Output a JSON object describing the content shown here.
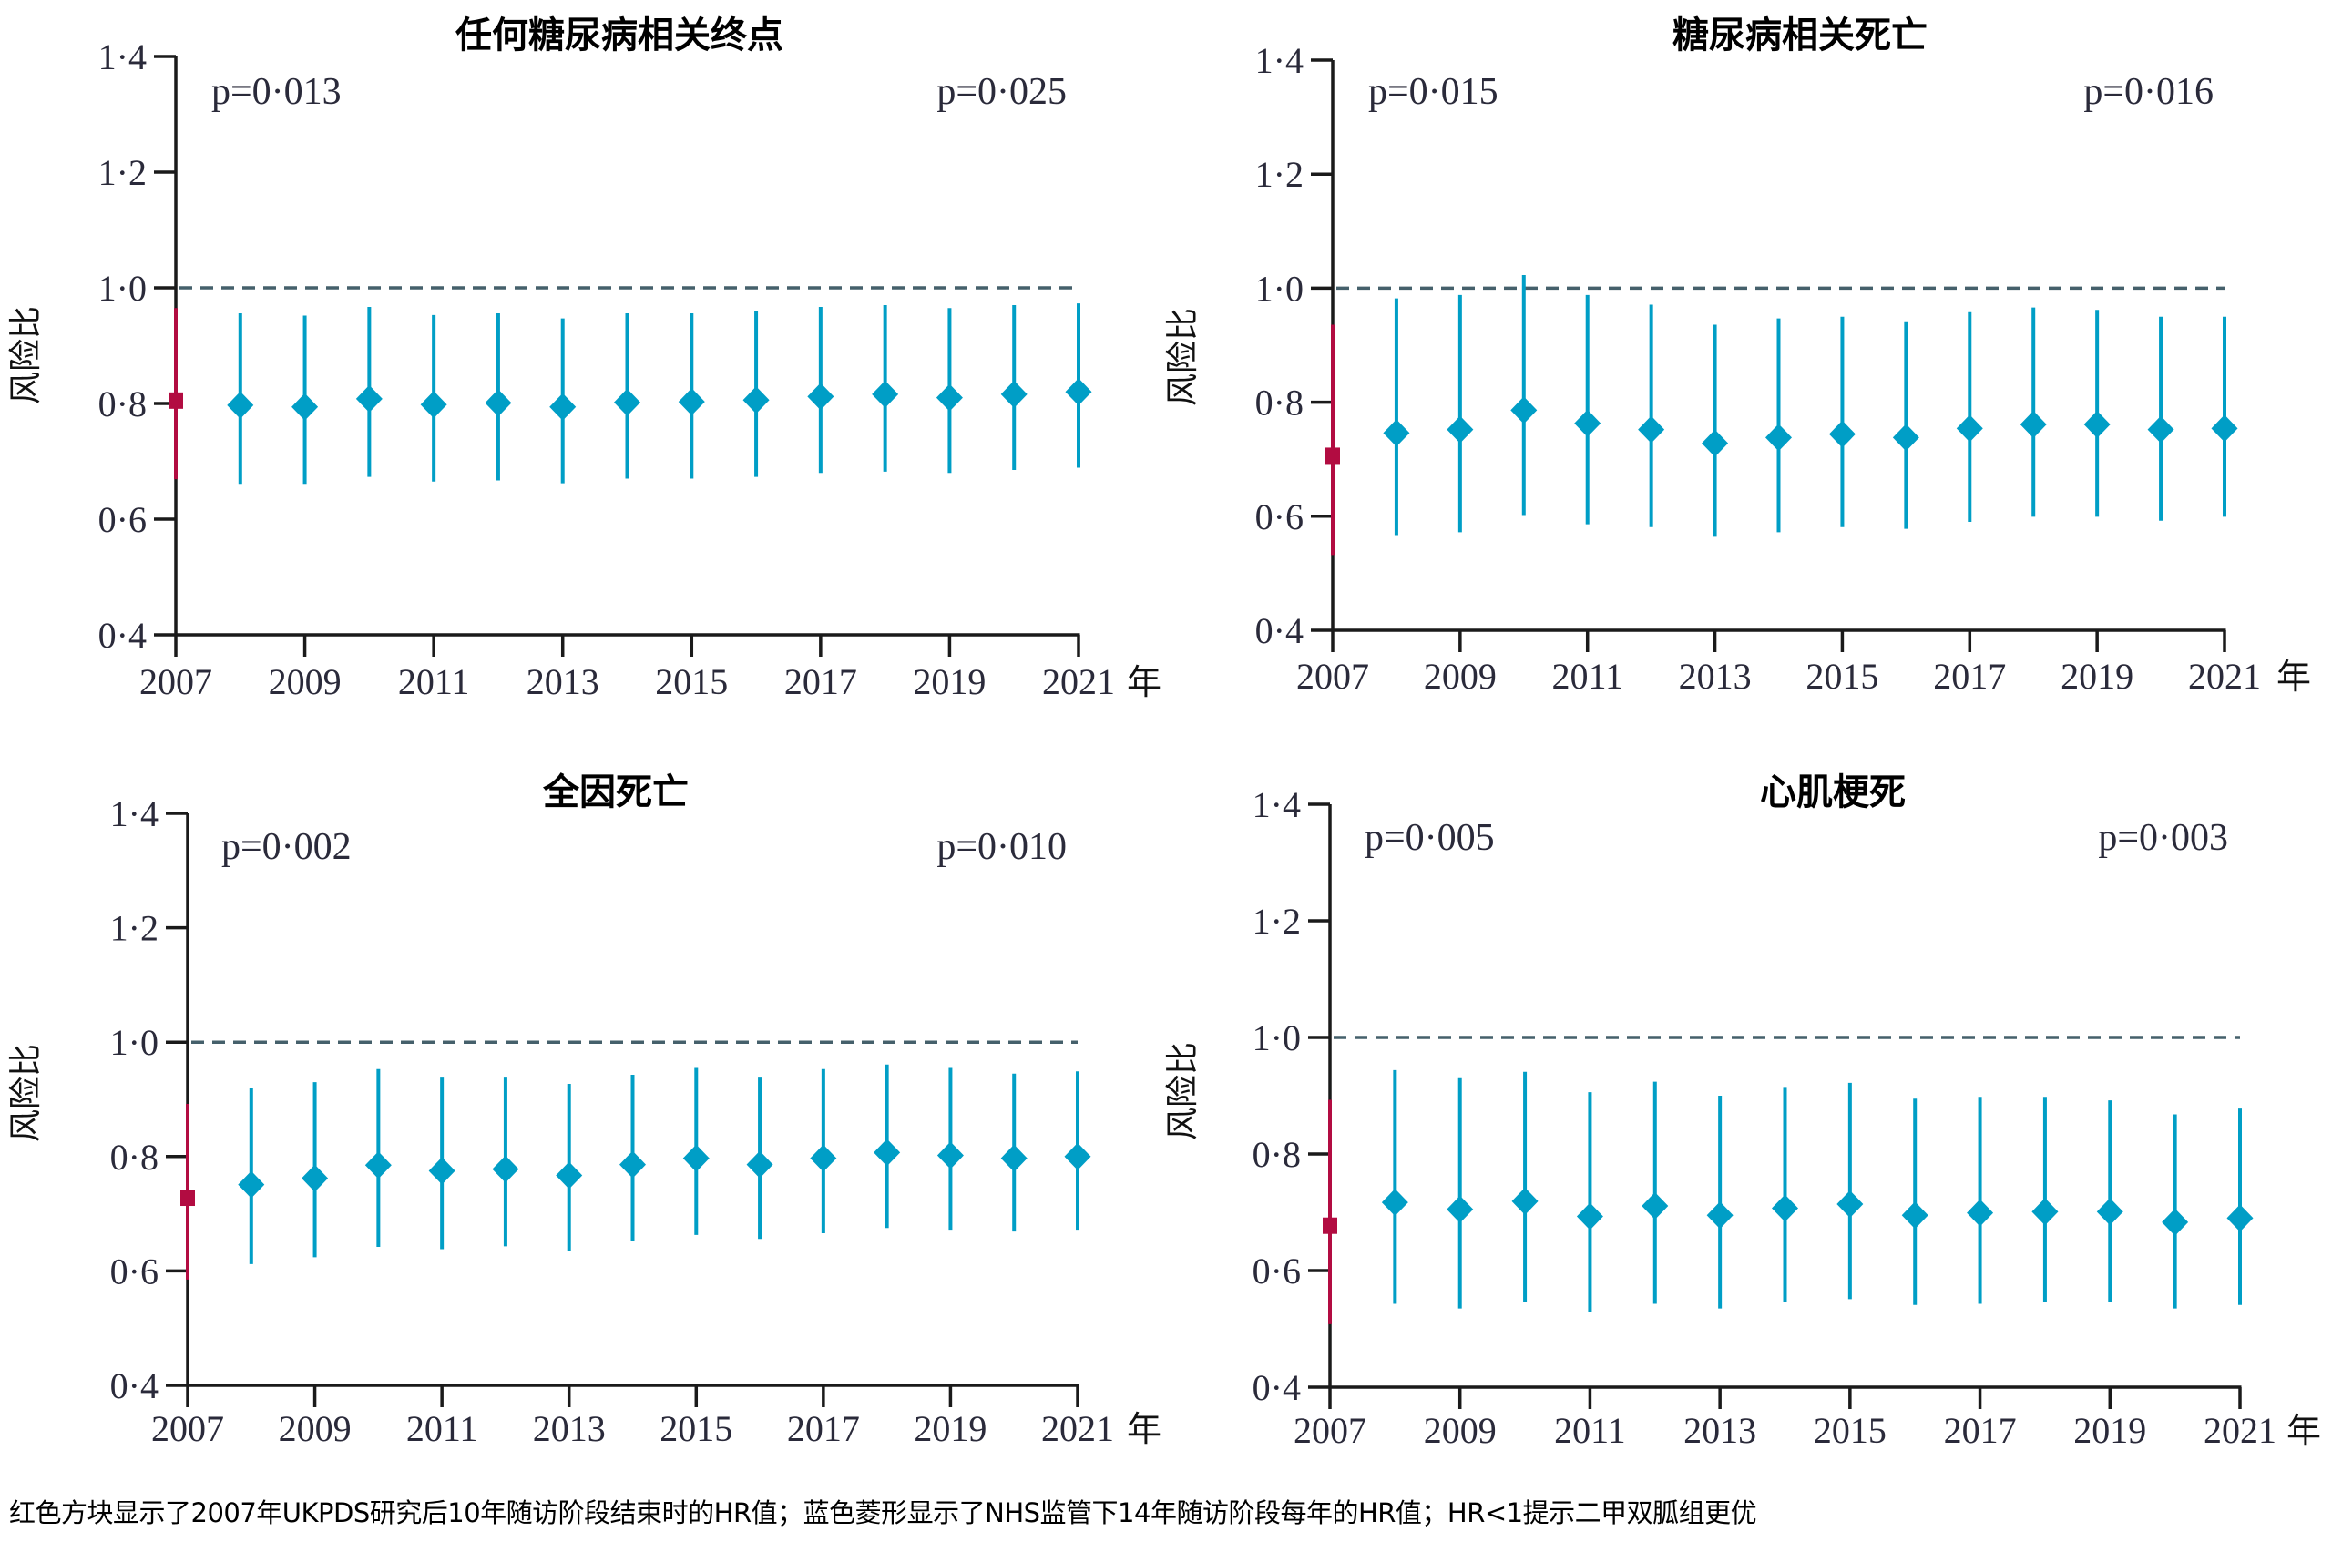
{
  "colors": {
    "baseline_2007": "#B20C41",
    "annual_nhs": "#009EC6",
    "reference_line": "#45606B",
    "axis": "#1A1A1A"
  },
  "caption": "红色方块显示了2007年UKPDS研究后10年随访阶段结束时的HR值；蓝色菱形显示了NHS监管下14年随访阶段每年的HR值；HR<1提示二甲双胍组更优",
  "chart_data": [
    {
      "type": "scatter",
      "title": "任何糖尿病相关终点",
      "xlabel": "年",
      "ylabel": "风险比",
      "ylim": [
        0.4,
        1.4
      ],
      "yticks": [
        "0·4",
        "0·6",
        "0·8",
        "1·0",
        "1·2",
        "1·4"
      ],
      "xlim": [
        2007,
        2021
      ],
      "xticks": [
        "2007",
        "2009",
        "2011",
        "2013",
        "2015",
        "2017",
        "2019",
        "2021"
      ],
      "reference_line": 1.0,
      "p_left": "p=0·013",
      "p_right": "p=0·025",
      "baseline": {
        "x": 2007,
        "hr": 0.805,
        "lo": 0.669,
        "hi": 0.965
      },
      "series": {
        "name": "annual HR",
        "x": [
          2008,
          2009,
          2010,
          2011,
          2012,
          2013,
          2014,
          2015,
          2016,
          2017,
          2018,
          2019,
          2020,
          2021
        ],
        "hr": [
          0.797,
          0.794,
          0.808,
          0.798,
          0.801,
          0.794,
          0.802,
          0.803,
          0.806,
          0.812,
          0.816,
          0.81,
          0.816,
          0.82
        ],
        "lo": [
          0.661,
          0.661,
          0.673,
          0.665,
          0.667,
          0.662,
          0.67,
          0.67,
          0.673,
          0.68,
          0.682,
          0.68,
          0.685,
          0.689
        ],
        "hi": [
          0.956,
          0.952,
          0.967,
          0.953,
          0.956,
          0.947,
          0.956,
          0.956,
          0.959,
          0.967,
          0.97,
          0.965,
          0.97,
          0.973
        ]
      }
    },
    {
      "type": "scatter",
      "title": "糖尿病相关死亡",
      "xlabel": "年",
      "ylabel": "风险比",
      "ylim": [
        0.4,
        1.4
      ],
      "yticks": [
        "0·4",
        "0·6",
        "0·8",
        "1·0",
        "1·2",
        "1·4"
      ],
      "xlim": [
        2007,
        2021
      ],
      "xticks": [
        "2007",
        "2009",
        "2011",
        "2013",
        "2015",
        "2017",
        "2019",
        "2021"
      ],
      "reference_line": 1.0,
      "p_left": "p=0·015",
      "p_right": "p=0·016",
      "baseline": {
        "x": 2007,
        "hr": 0.706,
        "lo": 0.532,
        "hi": 0.936
      },
      "series": {
        "name": "annual HR",
        "x": [
          2008,
          2009,
          2010,
          2011,
          2012,
          2013,
          2014,
          2015,
          2016,
          2017,
          2018,
          2019,
          2020,
          2021
        ],
        "hr": [
          0.746,
          0.752,
          0.786,
          0.763,
          0.752,
          0.728,
          0.738,
          0.744,
          0.738,
          0.754,
          0.761,
          0.761,
          0.752,
          0.754
        ],
        "lo": [
          0.567,
          0.572,
          0.602,
          0.586,
          0.581,
          0.564,
          0.572,
          0.581,
          0.578,
          0.59,
          0.599,
          0.599,
          0.592,
          0.599
        ],
        "hi": [
          0.982,
          0.988,
          1.023,
          0.988,
          0.971,
          0.936,
          0.947,
          0.95,
          0.942,
          0.958,
          0.966,
          0.962,
          0.95,
          0.95
        ]
      }
    },
    {
      "type": "scatter",
      "title": "全因死亡",
      "xlabel": "年",
      "ylabel": "风险比",
      "ylim": [
        0.4,
        1.4
      ],
      "yticks": [
        "0·4",
        "0·6",
        "0·8",
        "1·0",
        "1·2",
        "1·4"
      ],
      "xlim": [
        2007,
        2021
      ],
      "xticks": [
        "2007",
        "2009",
        "2011",
        "2013",
        "2015",
        "2017",
        "2019",
        "2021"
      ],
      "reference_line": 1.0,
      "p_left": "p=0·002",
      "p_right": "p=0·010",
      "baseline": {
        "x": 2007,
        "hr": 0.728,
        "lo": 0.585,
        "hi": 0.892
      },
      "series": {
        "name": "annual HR",
        "x": [
          2008,
          2009,
          2010,
          2011,
          2012,
          2013,
          2014,
          2015,
          2016,
          2017,
          2018,
          2019,
          2020,
          2021
        ],
        "hr": [
          0.751,
          0.762,
          0.785,
          0.775,
          0.778,
          0.767,
          0.786,
          0.797,
          0.786,
          0.797,
          0.807,
          0.802,
          0.797,
          0.8
        ],
        "lo": [
          0.612,
          0.624,
          0.642,
          0.638,
          0.643,
          0.634,
          0.653,
          0.663,
          0.656,
          0.666,
          0.675,
          0.672,
          0.669,
          0.672
        ],
        "hi": [
          0.92,
          0.93,
          0.953,
          0.938,
          0.938,
          0.927,
          0.943,
          0.955,
          0.938,
          0.953,
          0.961,
          0.955,
          0.945,
          0.949
        ]
      }
    },
    {
      "type": "scatter",
      "title": "心肌梗死",
      "xlabel": "年",
      "ylabel": "风险比",
      "ylim": [
        0.4,
        1.4
      ],
      "yticks": [
        "0·4",
        "0·6",
        "0·8",
        "1·0",
        "1·2",
        "1·4"
      ],
      "xlim": [
        2007,
        2021
      ],
      "xticks": [
        "2007",
        "2009",
        "2011",
        "2013",
        "2015",
        "2017",
        "2019",
        "2021"
      ],
      "reference_line": 1.0,
      "p_left": "p=0·005",
      "p_right": "p=0·003",
      "baseline": {
        "x": 2007,
        "hr": 0.677,
        "lo": 0.508,
        "hi": 0.893
      },
      "series": {
        "name": "annual HR",
        "x": [
          2008,
          2009,
          2010,
          2011,
          2012,
          2013,
          2014,
          2015,
          2016,
          2017,
          2018,
          2019,
          2020,
          2021
        ],
        "hr": [
          0.717,
          0.705,
          0.719,
          0.693,
          0.711,
          0.695,
          0.707,
          0.714,
          0.695,
          0.699,
          0.701,
          0.701,
          0.683,
          0.69
        ],
        "lo": [
          0.543,
          0.535,
          0.546,
          0.529,
          0.543,
          0.535,
          0.546,
          0.551,
          0.541,
          0.543,
          0.546,
          0.546,
          0.535,
          0.541
        ],
        "hi": [
          0.944,
          0.93,
          0.941,
          0.906,
          0.924,
          0.9,
          0.915,
          0.922,
          0.895,
          0.898,
          0.898,
          0.892,
          0.868,
          0.878
        ]
      }
    }
  ]
}
